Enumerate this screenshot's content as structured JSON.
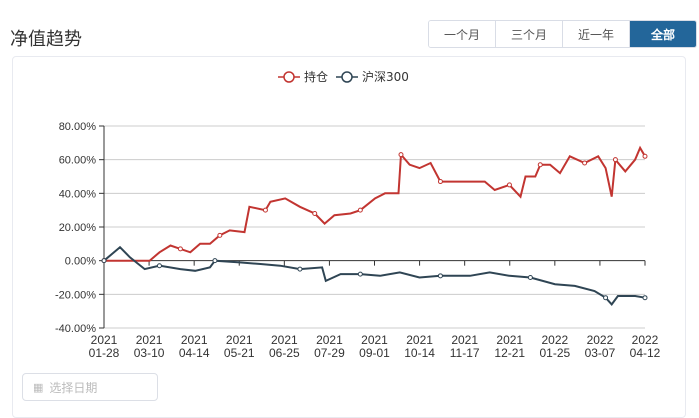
{
  "title": "净值趋势",
  "ranges": [
    "一个月",
    "三个月",
    "近一年",
    "全部"
  ],
  "active_range": "全部",
  "date_placeholder": "选择日期",
  "chart_data": {
    "type": "line",
    "title": "",
    "xlabel": "",
    "ylabel": "",
    "ylim": [
      -40,
      80
    ],
    "yticks": [
      "80.00%",
      "60.00%",
      "40.00%",
      "20.00%",
      "0.00%",
      "-20.00%",
      "-40.00%"
    ],
    "ytick_values": [
      80,
      60,
      40,
      20,
      0,
      -20,
      -40
    ],
    "xticks": [
      [
        "2021",
        "01-28"
      ],
      [
        "2021",
        "03-10"
      ],
      [
        "2021",
        "04-14"
      ],
      [
        "2021",
        "05-21"
      ],
      [
        "2021",
        "06-25"
      ],
      [
        "2021",
        "07-29"
      ],
      [
        "2021",
        "09-01"
      ],
      [
        "2021",
        "10-14"
      ],
      [
        "2021",
        "11-17"
      ],
      [
        "2021",
        "12-21"
      ],
      [
        "2022",
        "01-25"
      ],
      [
        "2022",
        "03-07"
      ],
      [
        "2022",
        "04-12"
      ]
    ],
    "x_unit": "days since 2021-01-28",
    "xlim": [
      0,
      439
    ],
    "series": [
      {
        "name": "持仓",
        "color": "#c23531",
        "points": [
          [
            0,
            0
          ],
          [
            37,
            0
          ],
          [
            45,
            5
          ],
          [
            54,
            9
          ],
          [
            62,
            7
          ],
          [
            70,
            5
          ],
          [
            78,
            10
          ],
          [
            86,
            10
          ],
          [
            94,
            15
          ],
          [
            102,
            18
          ],
          [
            114,
            17
          ],
          [
            118,
            32
          ],
          [
            131,
            30
          ],
          [
            135,
            35
          ],
          [
            147,
            37
          ],
          [
            159,
            32
          ],
          [
            171,
            28
          ],
          [
            179,
            22
          ],
          [
            187,
            27
          ],
          [
            200,
            28
          ],
          [
            208,
            30
          ],
          [
            220,
            37
          ],
          [
            228,
            40
          ],
          [
            239,
            40
          ],
          [
            241,
            63
          ],
          [
            248,
            57
          ],
          [
            256,
            55
          ],
          [
            265,
            58
          ],
          [
            273,
            47
          ],
          [
            293,
            47
          ],
          [
            309,
            47
          ],
          [
            317,
            42
          ],
          [
            329,
            45
          ],
          [
            338,
            38
          ],
          [
            342,
            50
          ],
          [
            350,
            50
          ],
          [
            354,
            57
          ],
          [
            362,
            57
          ],
          [
            370,
            52
          ],
          [
            378,
            62
          ],
          [
            390,
            58
          ],
          [
            401,
            62
          ],
          [
            407,
            55
          ],
          [
            412,
            38
          ],
          [
            415,
            60
          ],
          [
            423,
            53
          ],
          [
            431,
            60
          ],
          [
            435,
            67
          ],
          [
            439,
            62
          ]
        ]
      },
      {
        "name": "沪深300",
        "color": "#2f4554",
        "points": [
          [
            0,
            0
          ],
          [
            13,
            8
          ],
          [
            21,
            2
          ],
          [
            33,
            -5
          ],
          [
            45,
            -3
          ],
          [
            62,
            -5
          ],
          [
            74,
            -6
          ],
          [
            86,
            -4
          ],
          [
            90,
            0
          ],
          [
            110,
            -1
          ],
          [
            127,
            -2
          ],
          [
            143,
            -3
          ],
          [
            159,
            -5
          ],
          [
            177,
            -4
          ],
          [
            180,
            -12
          ],
          [
            192,
            -8
          ],
          [
            208,
            -8
          ],
          [
            224,
            -9
          ],
          [
            240,
            -7
          ],
          [
            256,
            -10
          ],
          [
            273,
            -9
          ],
          [
            297,
            -9
          ],
          [
            313,
            -7
          ],
          [
            329,
            -9
          ],
          [
            346,
            -10
          ],
          [
            366,
            -14
          ],
          [
            382,
            -15
          ],
          [
            398,
            -18
          ],
          [
            407,
            -22
          ],
          [
            412,
            -26
          ],
          [
            417,
            -21
          ],
          [
            431,
            -21
          ],
          [
            439,
            -22
          ]
        ]
      }
    ]
  }
}
